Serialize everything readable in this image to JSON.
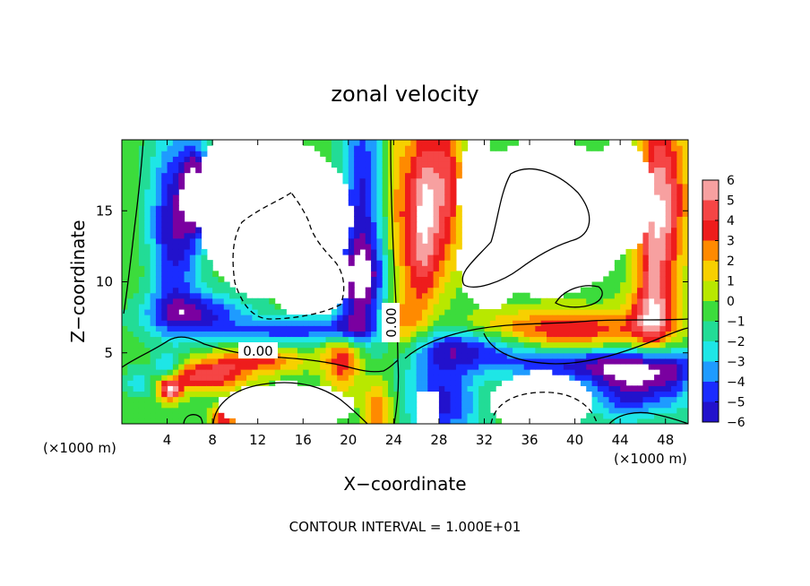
{
  "chart_data": {
    "type": "heatmap",
    "title": "zonal velocity",
    "xlabel": "X−coordinate",
    "ylabel": "Z−coordinate",
    "x_unit_left": "(×1000 m)",
    "x_unit_right": "(×1000 m)",
    "footer": "CONTOUR INTERVAL =  1.000E+01",
    "xlim": [
      0,
      50
    ],
    "ylim": [
      0,
      20
    ],
    "x_ticks": [
      4,
      8,
      12,
      16,
      20,
      24,
      28,
      32,
      36,
      40,
      44,
      48
    ],
    "y_ticks": [
      5,
      10,
      15
    ],
    "colorbar": {
      "levels": [
        6,
        5,
        4,
        3,
        2,
        1,
        0,
        -1,
        -2,
        -3,
        -4,
        -5,
        -6
      ],
      "labels": [
        "6",
        "5",
        "4",
        "3",
        "2",
        "1",
        "0",
        "−1",
        "−2",
        "−3",
        "−4",
        "−5",
        "−6"
      ],
      "colors": [
        "#f7a0a0",
        "#f54545",
        "#ee1c1c",
        "#ff8a00",
        "#f7d000",
        "#b8e800",
        "#3cdc3c",
        "#22dc96",
        "#1ee6e6",
        "#1e9bff",
        "#1a2cff",
        "#2212cc",
        "#7a00a0"
      ]
    },
    "contour_labels": [
      {
        "text": "0.00",
        "x": 13.0,
        "z": 5.0
      },
      {
        "text": "0.00",
        "x": 24.0,
        "z": 6.8
      }
    ],
    "grid": false,
    "legend": "colorbar-right"
  }
}
